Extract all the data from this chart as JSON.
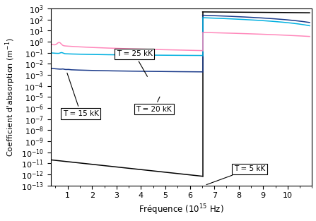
{
  "background_color": "#ffffff",
  "colors": {
    "T5": "#000000",
    "T15": "#1a3a8a",
    "T20": "#00b0e0",
    "T25": "#ff88bb"
  },
  "xlim": [
    0.3,
    11.0
  ],
  "ylim": [
    1e-13,
    1000.0
  ],
  "xlabel": "Fréquence (10$^{15}$ Hz)",
  "ylabel": "Coefficient d'absorption (m$^{-1}$)",
  "edge_x": 6.52,
  "lw": 1.1
}
